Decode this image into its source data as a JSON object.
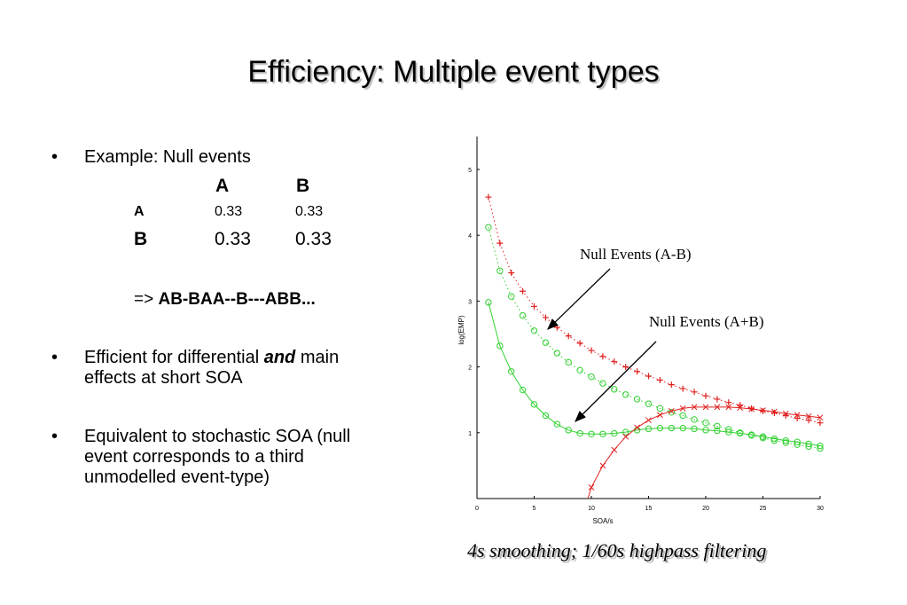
{
  "slide": {
    "title": "Efficiency: Multiple event types",
    "bullets": [
      {
        "text": "Example: Null events"
      },
      {
        "text_before": "Efficient for differential ",
        "emph": "and",
        "text_after": " main",
        "line2": "effects at short SOA"
      },
      {
        "line1": "Equivalent to stochastic SOA (null",
        "line2": "event corresponds to a third",
        "line3": "unmodelled event-type)"
      }
    ],
    "bullet_glyph": "•",
    "matrix": {
      "col_headers": [
        "A",
        "B"
      ],
      "rows": [
        {
          "label": "A",
          "values": [
            "0.33",
            "0.33"
          ]
        },
        {
          "label": "B",
          "values": [
            "0.33",
            "0.33"
          ]
        }
      ]
    },
    "sequence_prefix": "=>",
    "sequence": "AB-BAA--B---ABB...",
    "caption": "4s smoothing; 1/60s highpass filtering"
  },
  "chart_data": {
    "type": "line",
    "xlabel": "SOA/s",
    "ylabel": "log(EMP)",
    "xlim": [
      0,
      30
    ],
    "ylim": [
      0,
      5.5
    ],
    "xticks": [
      0,
      5,
      10,
      15,
      20,
      25,
      30
    ],
    "yticks": [
      1,
      2,
      3,
      4,
      5
    ],
    "grid": false,
    "annotations": [
      {
        "text": "Null Events (A-B)",
        "points_to": [
          6.2,
          2.55
        ]
      },
      {
        "text": "Null Events (A+B)",
        "points_to": [
          8.3,
          1.12
        ]
      }
    ],
    "series": [
      {
        "color": "#e02020",
        "marker": "+",
        "line": "dotted",
        "x": [
          1,
          2,
          3,
          4,
          5,
          6,
          7,
          8,
          9,
          10,
          11,
          12,
          13,
          14,
          15,
          16,
          17,
          18,
          19,
          20,
          21,
          22,
          23,
          24,
          25,
          26,
          27,
          28,
          29,
          30
        ],
        "y": [
          4.58,
          3.88,
          3.43,
          3.15,
          2.92,
          2.75,
          2.6,
          2.47,
          2.36,
          2.25,
          2.16,
          2.08,
          2.0,
          1.93,
          1.86,
          1.8,
          1.73,
          1.67,
          1.62,
          1.56,
          1.51,
          1.46,
          1.42,
          1.37,
          1.33,
          1.3,
          1.26,
          1.22,
          1.19,
          1.15
        ]
      },
      {
        "color": "#30d030",
        "marker": "o",
        "line": "dotted",
        "x": [
          1,
          2,
          3,
          4,
          5,
          6,
          7,
          8,
          9,
          10,
          11,
          12,
          13,
          14,
          15,
          16,
          17,
          18,
          19,
          20,
          21,
          22,
          23,
          24,
          25,
          26,
          27,
          28,
          29,
          30
        ],
        "y": [
          4.12,
          3.46,
          3.07,
          2.78,
          2.55,
          2.37,
          2.21,
          2.07,
          1.95,
          1.85,
          1.75,
          1.66,
          1.58,
          1.51,
          1.44,
          1.37,
          1.31,
          1.26,
          1.2,
          1.15,
          1.1,
          1.05,
          1.0,
          0.96,
          0.92,
          0.88,
          0.85,
          0.82,
          0.79,
          0.76
        ]
      },
      {
        "color": "#30d030",
        "marker": "o",
        "line": "solid",
        "x": [
          1,
          2,
          3,
          4,
          5,
          6,
          7,
          8,
          9,
          10,
          11,
          12,
          13,
          14,
          15,
          16,
          17,
          18,
          19,
          20,
          21,
          22,
          23,
          24,
          25,
          26,
          27,
          28,
          29,
          30
        ],
        "y": [
          2.98,
          2.32,
          1.93,
          1.65,
          1.43,
          1.26,
          1.13,
          1.04,
          0.99,
          0.98,
          0.98,
          0.99,
          1.01,
          1.04,
          1.06,
          1.07,
          1.07,
          1.07,
          1.06,
          1.04,
          1.03,
          1.01,
          0.99,
          0.97,
          0.94,
          0.91,
          0.88,
          0.86,
          0.83,
          0.8
        ]
      },
      {
        "color": "#e02020",
        "marker": "x",
        "line": "solid",
        "x": [
          9.7,
          10,
          11,
          12,
          13,
          14,
          15,
          16,
          17,
          18,
          19,
          20,
          21,
          22,
          23,
          24,
          25,
          26,
          27,
          28,
          29,
          30
        ],
        "y": [
          0,
          0.17,
          0.5,
          0.74,
          0.94,
          1.08,
          1.19,
          1.27,
          1.33,
          1.37,
          1.39,
          1.39,
          1.39,
          1.39,
          1.38,
          1.36,
          1.34,
          1.32,
          1.29,
          1.27,
          1.25,
          1.23
        ]
      }
    ]
  }
}
